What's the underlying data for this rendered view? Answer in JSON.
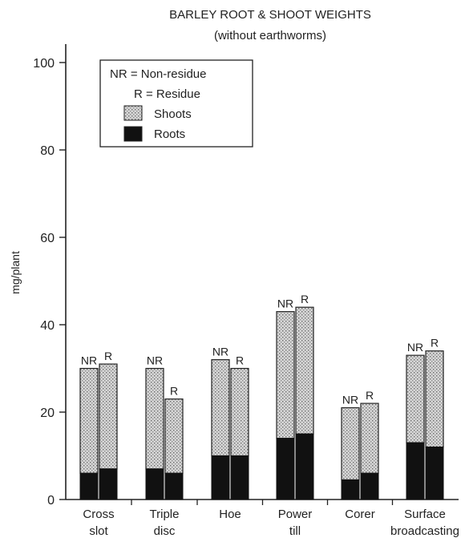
{
  "chart_data": {
    "type": "bar",
    "stacked": true,
    "title": "BARLEY ROOT & SHOOT WEIGHTS",
    "subtitle": "(without earthworms)",
    "ylabel": "mg/plant",
    "xlabel": "",
    "ylim": [
      0,
      100
    ],
    "yticks": [
      0,
      20,
      40,
      60,
      80,
      100
    ],
    "categories": [
      {
        "line1": "Cross",
        "line2": "slot"
      },
      {
        "line1": "Triple",
        "line2": "disc"
      },
      {
        "line1": "Hoe",
        "line2": ""
      },
      {
        "line1": "Power",
        "line2": "till"
      },
      {
        "line1": "Corer",
        "line2": ""
      },
      {
        "line1": "Surface",
        "line2": "broadcasting"
      }
    ],
    "bar_labels": [
      "NR",
      "R"
    ],
    "series": [
      {
        "name": "Roots",
        "color": "#111111",
        "values": [
          [
            6,
            7
          ],
          [
            7,
            6
          ],
          [
            10,
            10
          ],
          [
            14,
            15
          ],
          [
            4.5,
            6
          ],
          [
            13,
            12
          ]
        ]
      },
      {
        "name": "Shoots",
        "color": "#c8c8c8",
        "pattern": "stipple",
        "values": [
          [
            24,
            24
          ],
          [
            23,
            17
          ],
          [
            22,
            20
          ],
          [
            29,
            29
          ],
          [
            16.5,
            16
          ],
          [
            20,
            22
          ]
        ]
      }
    ],
    "totals": [
      [
        30,
        31
      ],
      [
        30,
        23
      ],
      [
        32,
        30
      ],
      [
        43,
        44
      ],
      [
        21,
        22
      ],
      [
        33,
        34
      ]
    ],
    "legend": {
      "position": "top-left",
      "lines": [
        "NR = Non-residue",
        "R = Residue"
      ],
      "entries": [
        "Shoots",
        "Roots"
      ]
    },
    "grid": false
  }
}
